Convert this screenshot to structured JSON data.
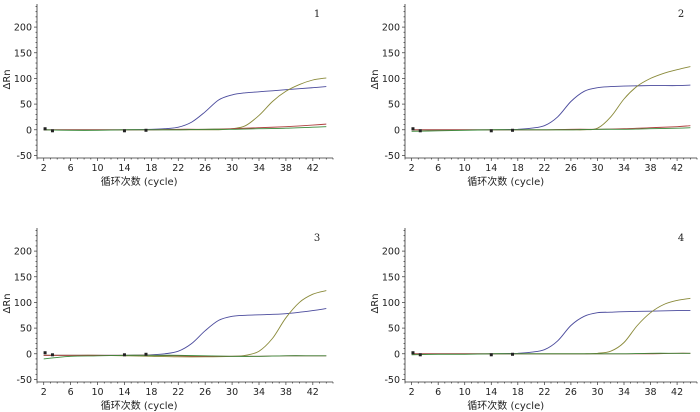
{
  "chart_data": [
    {
      "type": "line",
      "panel_label": "1",
      "xlabel": "循环次数 (cycle)",
      "ylabel": "ΔRn",
      "xlim": [
        1,
        45
      ],
      "ylim": [
        -55,
        245
      ],
      "xticks": [
        2,
        6,
        10,
        14,
        18,
        22,
        26,
        30,
        34,
        38,
        42
      ],
      "yticks": [
        -50,
        0,
        50,
        100,
        150,
        200
      ],
      "grid": false,
      "series": [
        {
          "color": "#4a4a9c",
          "x": [
            2,
            6,
            10,
            14,
            18,
            20,
            22,
            24,
            26,
            28,
            30,
            32,
            34,
            36,
            38,
            40,
            42,
            44
          ],
          "y": [
            0,
            0,
            0,
            0,
            1,
            2,
            5,
            15,
            35,
            58,
            68,
            72,
            74,
            76,
            78,
            80,
            82,
            84
          ]
        },
        {
          "color": "#8a8a3a",
          "x": [
            2,
            6,
            10,
            14,
            18,
            22,
            26,
            28,
            30,
            32,
            34,
            36,
            38,
            40,
            42,
            44
          ],
          "y": [
            0,
            0,
            0,
            0,
            0,
            0,
            0,
            0,
            2,
            8,
            28,
            55,
            75,
            88,
            97,
            101
          ]
        },
        {
          "color": "#b04040",
          "x": [
            2,
            6,
            10,
            14,
            18,
            22,
            26,
            30,
            34,
            38,
            42,
            44
          ],
          "y": [
            0,
            0,
            0,
            0,
            0,
            1,
            1,
            2,
            4,
            6,
            9,
            11
          ]
        },
        {
          "color": "#3a8a3a",
          "x": [
            2,
            6,
            10,
            14,
            18,
            22,
            26,
            30,
            34,
            38,
            42,
            44
          ],
          "y": [
            0,
            -1,
            -1,
            0,
            0,
            0,
            1,
            1,
            2,
            3,
            5,
            6
          ]
        }
      ]
    },
    {
      "type": "line",
      "panel_label": "2",
      "xlabel": "循环次数 (cycle)",
      "ylabel": "ΔRn",
      "xlim": [
        1,
        45
      ],
      "ylim": [
        -55,
        245
      ],
      "xticks": [
        2,
        6,
        10,
        14,
        18,
        22,
        26,
        30,
        34,
        38,
        42
      ],
      "yticks": [
        -50,
        0,
        50,
        100,
        150,
        200
      ],
      "grid": false,
      "series": [
        {
          "color": "#4a4a9c",
          "x": [
            2,
            6,
            10,
            14,
            18,
            20,
            22,
            24,
            26,
            28,
            30,
            32,
            34,
            38,
            42,
            44
          ],
          "y": [
            0,
            0,
            0,
            0,
            1,
            3,
            8,
            25,
            55,
            75,
            82,
            84,
            85,
            86,
            86,
            87
          ]
        },
        {
          "color": "#8a8a3a",
          "x": [
            2,
            6,
            10,
            14,
            18,
            22,
            26,
            28,
            30,
            32,
            34,
            36,
            38,
            40,
            42,
            44
          ],
          "y": [
            0,
            0,
            0,
            0,
            0,
            0,
            0,
            0,
            3,
            25,
            60,
            85,
            100,
            110,
            117,
            123
          ]
        },
        {
          "color": "#b04040",
          "x": [
            2,
            6,
            10,
            14,
            18,
            22,
            26,
            30,
            34,
            38,
            42,
            44
          ],
          "y": [
            0,
            0,
            0,
            0,
            0,
            0,
            1,
            1,
            2,
            4,
            6,
            8
          ]
        },
        {
          "color": "#3a8a3a",
          "x": [
            2,
            6,
            10,
            14,
            18,
            22,
            26,
            30,
            34,
            38,
            42,
            44
          ],
          "y": [
            -3,
            -2,
            -1,
            0,
            0,
            0,
            0,
            1,
            1,
            2,
            3,
            4
          ]
        }
      ]
    },
    {
      "type": "line",
      "panel_label": "3",
      "xlabel": "循环次数 (cycle)",
      "ylabel": "ΔRn",
      "xlim": [
        1,
        45
      ],
      "ylim": [
        -55,
        245
      ],
      "xticks": [
        2,
        6,
        10,
        14,
        18,
        22,
        26,
        30,
        34,
        38,
        42
      ],
      "yticks": [
        -50,
        0,
        50,
        100,
        150,
        200
      ],
      "grid": false,
      "series": [
        {
          "color": "#4a4a9c",
          "x": [
            2,
            6,
            10,
            14,
            18,
            20,
            22,
            24,
            26,
            28,
            30,
            32,
            34,
            38,
            42,
            44
          ],
          "y": [
            -3,
            -3,
            -3,
            -3,
            -2,
            0,
            5,
            20,
            45,
            65,
            73,
            75,
            76,
            78,
            84,
            88
          ]
        },
        {
          "color": "#8a8a3a",
          "x": [
            2,
            6,
            10,
            14,
            18,
            22,
            26,
            30,
            32,
            34,
            36,
            38,
            40,
            42,
            44
          ],
          "y": [
            -3,
            -3,
            -3,
            -4,
            -5,
            -6,
            -6,
            -5,
            -3,
            5,
            30,
            70,
            100,
            116,
            123
          ]
        },
        {
          "color": "#b04040",
          "x": [
            2,
            6,
            10,
            14,
            18,
            22,
            26,
            30,
            34,
            38,
            42,
            44
          ],
          "y": [
            -3,
            -3,
            -3,
            -3,
            -3,
            -4,
            -5,
            -5,
            -5,
            -4,
            -4,
            -4
          ]
        },
        {
          "color": "#3a8a3a",
          "x": [
            2,
            6,
            10,
            14,
            18,
            22,
            26,
            30,
            34,
            38,
            42,
            44
          ],
          "y": [
            -10,
            -5,
            -4,
            -3,
            -3,
            -3,
            -4,
            -5,
            -5,
            -4,
            -4,
            -4
          ]
        }
      ]
    },
    {
      "type": "line",
      "panel_label": "4",
      "xlabel": "循环次数 (cycle)",
      "ylabel": "ΔRn",
      "xlim": [
        1,
        45
      ],
      "ylim": [
        -55,
        245
      ],
      "xticks": [
        2,
        6,
        10,
        14,
        18,
        22,
        26,
        30,
        34,
        38,
        42
      ],
      "yticks": [
        -50,
        0,
        50,
        100,
        150,
        200
      ],
      "grid": false,
      "series": [
        {
          "color": "#4a4a9c",
          "x": [
            2,
            6,
            10,
            14,
            18,
            20,
            22,
            24,
            26,
            28,
            30,
            32,
            34,
            38,
            42,
            44
          ],
          "y": [
            0,
            0,
            0,
            0,
            1,
            3,
            8,
            25,
            55,
            73,
            80,
            81,
            82,
            83,
            84,
            84
          ]
        },
        {
          "color": "#8a8a3a",
          "x": [
            2,
            6,
            10,
            14,
            18,
            22,
            26,
            28,
            30,
            32,
            34,
            36,
            38,
            40,
            42,
            44
          ],
          "y": [
            0,
            0,
            0,
            0,
            0,
            0,
            0,
            0,
            1,
            5,
            22,
            55,
            80,
            96,
            104,
            108
          ]
        },
        {
          "color": "#b04040",
          "x": [
            2,
            6,
            10,
            14,
            18,
            22,
            26,
            30,
            34,
            38,
            42,
            44
          ],
          "y": [
            0,
            0,
            0,
            0,
            0,
            0,
            0,
            0,
            0,
            0,
            1,
            1
          ]
        },
        {
          "color": "#3a8a3a",
          "x": [
            2,
            6,
            10,
            14,
            18,
            22,
            26,
            30,
            34,
            38,
            42,
            44
          ],
          "y": [
            -2,
            -1,
            -1,
            0,
            0,
            0,
            0,
            0,
            0,
            1,
            1,
            1
          ]
        }
      ]
    }
  ]
}
